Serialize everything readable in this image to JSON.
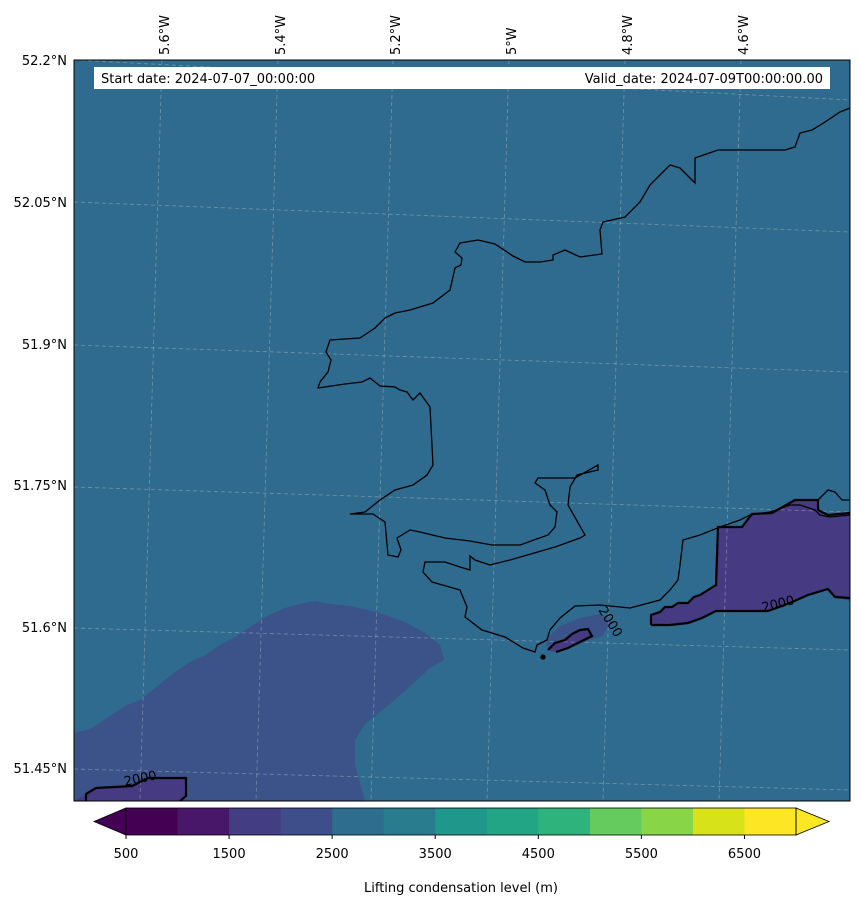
{
  "header": {
    "start_date": "Start date: 2024-07-07_00:00:00",
    "valid_date": "Valid_date: 2024-07-09T00:00:00.00"
  },
  "axes": {
    "lon_labels": [
      "5.6°W",
      "5.4°W",
      "5.2°W",
      "5°W",
      "4.8°W",
      "4.6°W"
    ],
    "lat_labels": [
      "52.2°N",
      "52.05°N",
      "51.9°N",
      "51.75°N",
      "51.6°N",
      "51.45°N"
    ]
  },
  "contour_labels": [
    "2000",
    "2000",
    "2000"
  ],
  "colorbar": {
    "label": "Lifting condensation level (m)",
    "tick_labels": [
      "500",
      "1500",
      "2500",
      "3500",
      "4500",
      "5500",
      "6500"
    ],
    "levels": [
      500,
      1000,
      1500,
      2000,
      2500,
      3000,
      3500,
      4000,
      4500,
      5000,
      5500,
      6000,
      6500,
      7000
    ],
    "colors": [
      "#440154",
      "#481769",
      "#472a7a",
      "#433d84",
      "#3d4e8a",
      "#355e8d",
      "#2e6d8e",
      "#297b8e",
      "#23898e",
      "#1f978b",
      "#21a585",
      "#2eb37c",
      "#46c06f",
      "#65cb5e",
      "#89d548",
      "#b0dd2f",
      "#d8e219",
      "#fde725"
    ],
    "under_color": "#440154",
    "over_color": "#fde725"
  },
  "field": {
    "background_color": "#2f6b8e",
    "low_region_color": "#3b5389",
    "lowest_region_color": "#463a83",
    "coastline_color": "#000000"
  }
}
